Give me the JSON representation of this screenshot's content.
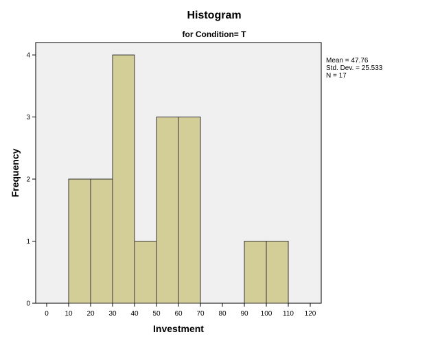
{
  "chart_data": {
    "type": "bar",
    "subtype": "histogram",
    "title": "Histogram",
    "subtitle": "for Condition= T",
    "xlabel": "Investment",
    "ylabel": "Frequency",
    "bins": [
      {
        "from": 10,
        "to": 20,
        "count": 2
      },
      {
        "from": 20,
        "to": 30,
        "count": 2
      },
      {
        "from": 30,
        "to": 40,
        "count": 4
      },
      {
        "from": 40,
        "to": 50,
        "count": 1
      },
      {
        "from": 50,
        "to": 60,
        "count": 3
      },
      {
        "from": 60,
        "to": 70,
        "count": 3
      },
      {
        "from": 90,
        "to": 100,
        "count": 1
      },
      {
        "from": 100,
        "to": 110,
        "count": 1
      }
    ],
    "x_ticks": [
      "0",
      "10",
      "20",
      "30",
      "40",
      "50",
      "60",
      "70",
      "80",
      "90",
      "100",
      "110",
      "120"
    ],
    "y_ticks": [
      "0",
      "1",
      "2",
      "3",
      "4"
    ],
    "xlim": [
      -5,
      125
    ],
    "ylim": [
      0,
      4.2
    ],
    "stats": [
      "Mean = 47.76",
      "Std. Dev. = 25.533",
      "N = 17"
    ],
    "grid": false,
    "bar_color": "#d3ce98",
    "bar_edge_color": "#333333",
    "plot_background": "#f0f0f0"
  }
}
